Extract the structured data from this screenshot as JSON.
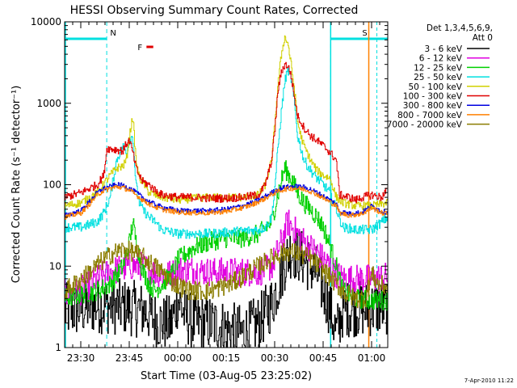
{
  "chart_data": {
    "type": "line",
    "title": "HESSI Observing Summary Count Rates, Corrected",
    "xlabel": "Start Time (03-Aug-05 23:25:02)",
    "ylabel": "Corrected Count Rate (s⁻¹ detector⁻¹)",
    "ylog": true,
    "ylim": [
      1,
      10000
    ],
    "xlim_minutes": [
      -0.03,
      99.97
    ],
    "x_ticks": [
      {
        "m": 4.97,
        "label": "23:30"
      },
      {
        "m": 19.97,
        "label": "23:45"
      },
      {
        "m": 34.97,
        "label": "00:00"
      },
      {
        "m": 49.97,
        "label": "00:15"
      },
      {
        "m": 64.97,
        "label": "00:30"
      },
      {
        "m": 79.97,
        "label": "00:45"
      },
      {
        "m": 94.97,
        "label": "01:00"
      }
    ],
    "y_ticks": [
      {
        "v": 1,
        "label": "1"
      },
      {
        "v": 10,
        "label": "10"
      },
      {
        "v": 100,
        "label": "100"
      },
      {
        "v": 1000,
        "label": "1000"
      },
      {
        "v": 10000,
        "label": "10000"
      }
    ],
    "legend": {
      "placement": "right",
      "header": [
        "Det 1,3,4,5,6,9,",
        "Att 0"
      ]
    },
    "flags": [
      {
        "label": "N",
        "color": "#00e0e0",
        "x_start": -0.03,
        "x_end": 13.0,
        "line_at": 13.0
      },
      {
        "label": "F",
        "color": "#e00000",
        "x_start": 25.3,
        "x_end": 27.4
      },
      {
        "label": "S",
        "color": "#ff8000",
        "x_start": 94.1,
        "x_end": 97.0
      },
      {
        "label": "",
        "color": "#00e0e0",
        "x_start": 82.3,
        "x_end": 99.97,
        "line_at": 82.3
      }
    ],
    "series": [
      {
        "name": "3 - 6 keV",
        "color": "#000000",
        "x": [
          0,
          5,
          10,
          15,
          20,
          25,
          28,
          30,
          33,
          35,
          37,
          40,
          45,
          50,
          55,
          60,
          64,
          66,
          68,
          70,
          72,
          75,
          78,
          80,
          82,
          84,
          86,
          90,
          95,
          100
        ],
        "y": [
          2.8,
          3.0,
          3.3,
          3.2,
          3.1,
          2.8,
          2.2,
          2.0,
          2.0,
          4.0,
          2.5,
          2.0,
          2.0,
          1.7,
          1.5,
          2.0,
          3.5,
          6.0,
          11.0,
          16.0,
          14.0,
          11.0,
          8.0,
          5.0,
          3.0,
          1.5,
          3.0,
          3.0,
          3.0,
          3.2
        ]
      },
      {
        "name": "6 - 12 keV",
        "color": "#e000e0",
        "x": [
          0,
          5,
          10,
          14,
          18,
          20,
          22,
          24,
          26,
          28,
          30,
          33,
          35,
          40,
          45,
          50,
          55,
          60,
          64,
          67,
          69,
          72,
          75,
          78,
          80,
          82,
          84,
          86,
          90,
          95,
          100
        ],
        "y": [
          4.5,
          5.0,
          7.0,
          8.5,
          9.5,
          10.0,
          10.0,
          10.0,
          9.0,
          8.5,
          8.0,
          8.0,
          9.0,
          9.0,
          8.5,
          8.5,
          8.5,
          8.5,
          10.0,
          20.0,
          35.0,
          25.0,
          18.0,
          15.0,
          12.0,
          10.0,
          8.0,
          7.0,
          7.0,
          7.0,
          7.5
        ]
      },
      {
        "name": "12 - 25 keV",
        "color": "#00d000",
        "x": [
          0,
          5,
          10,
          14,
          18,
          20,
          21,
          22,
          24,
          26,
          28,
          30,
          33,
          35,
          40,
          45,
          50,
          55,
          60,
          64,
          66,
          68,
          70,
          72,
          74,
          76,
          78,
          80,
          82,
          84,
          86,
          90,
          95,
          100
        ],
        "y": [
          4.0,
          4.5,
          5.0,
          6.0,
          10.0,
          20.0,
          35.0,
          20.0,
          9.0,
          6.0,
          5.0,
          6.0,
          8.0,
          12.0,
          17.0,
          20.0,
          22.0,
          22.0,
          25.0,
          35.0,
          80.0,
          160.0,
          120.0,
          80.0,
          60.0,
          50.0,
          40.0,
          30.0,
          18.0,
          10.0,
          5.0,
          4.0,
          3.8,
          3.8
        ]
      },
      {
        "name": "25 - 50 keV",
        "color": "#00e0e0",
        "x": [
          0,
          5,
          10,
          12,
          14,
          16,
          18,
          19,
          20,
          21,
          22,
          23,
          24,
          26,
          28,
          30,
          35,
          40,
          45,
          50,
          55,
          60,
          62,
          64,
          65,
          66,
          67,
          68,
          69,
          70,
          71,
          72,
          74,
          76,
          78,
          80,
          82,
          84,
          86,
          90,
          95,
          100
        ],
        "y": [
          30.0,
          30.0,
          35.0,
          45.0,
          70.0,
          200.0,
          300.0,
          250.0,
          350.0,
          400.0,
          100.0,
          60.0,
          50.0,
          40.0,
          35.0,
          28.0,
          25.0,
          25.0,
          25.0,
          26.0,
          27.0,
          28.0,
          30.0,
          40.0,
          100.0,
          300.0,
          800.0,
          1800.0,
          2600.0,
          2000.0,
          1000.0,
          400.0,
          200.0,
          150.0,
          120.0,
          100.0,
          80.0,
          50.0,
          30.0,
          28.0,
          28.0,
          40.0
        ]
      },
      {
        "name": "50 - 100 keV",
        "color": "#d0d000",
        "x": [
          0,
          5,
          10,
          14,
          16,
          18,
          19,
          20,
          21,
          22,
          23,
          24,
          26,
          30,
          35,
          40,
          45,
          50,
          55,
          60,
          62,
          64,
          65,
          66,
          67,
          68,
          69,
          70,
          71,
          72,
          73,
          74,
          76,
          78,
          80,
          82,
          84,
          86,
          90,
          95,
          100
        ],
        "y": [
          55.0,
          60.0,
          80.0,
          130.0,
          160.0,
          170.0,
          200.0,
          400.0,
          700.0,
          200.0,
          120.0,
          110.0,
          80.0,
          70.0,
          65.0,
          68.0,
          70.0,
          70.0,
          70.0,
          75.0,
          100.0,
          200.0,
          600.0,
          1800.0,
          4000.0,
          6500.0,
          5500.0,
          3000.0,
          1500.0,
          600.0,
          400.0,
          300.0,
          200.0,
          150.0,
          130.0,
          120.0,
          70.0,
          60.0,
          55.0,
          55.0,
          60.0
        ]
      },
      {
        "name": "100 - 300 keV",
        "color": "#e00000",
        "x": [
          0,
          5,
          10,
          12,
          13,
          16,
          18,
          19,
          20,
          21,
          22,
          23,
          24,
          26,
          28,
          30,
          35,
          40,
          45,
          50,
          55,
          60,
          62,
          64,
          65,
          66,
          67,
          68,
          69,
          70,
          71,
          72,
          74,
          76,
          78,
          80,
          82,
          84,
          85,
          88,
          90,
          92,
          95,
          98,
          100
        ],
        "y": [
          70.0,
          80.0,
          100.0,
          130.0,
          280.0,
          270.0,
          260.0,
          320.0,
          350.0,
          250.0,
          160.0,
          130.0,
          110.0,
          100.0,
          85.0,
          75.0,
          70.0,
          70.0,
          68.0,
          68.0,
          70.0,
          75.0,
          100.0,
          200.0,
          500.0,
          1500.0,
          2400.0,
          3000.0,
          2900.0,
          2200.0,
          1200.0,
          700.0,
          500.0,
          400.0,
          350.0,
          300.0,
          250.0,
          200.0,
          75.0,
          70.0,
          65.0,
          70.0,
          75.0,
          70.0,
          90.0
        ]
      },
      {
        "name": "300 - 800 keV",
        "color": "#0000e0",
        "x": [
          0,
          5,
          8,
          10,
          12,
          14,
          16,
          18,
          20,
          22,
          24,
          26,
          28,
          30,
          33,
          35,
          40,
          45,
          50,
          55,
          58,
          60,
          62,
          64,
          66,
          68,
          70,
          72,
          74,
          76,
          78,
          80,
          82,
          84,
          85,
          88,
          90,
          92,
          95,
          98,
          100
        ],
        "y": [
          42.0,
          48.0,
          65.0,
          80.0,
          90.0,
          95.0,
          100.0,
          98.0,
          90.0,
          80.0,
          70.0,
          62.0,
          57.0,
          53.0,
          50.0,
          48.0,
          48.0,
          48.0,
          50.0,
          55.0,
          60.0,
          65.0,
          72.0,
          80.0,
          88.0,
          93.0,
          95.0,
          95.0,
          93.0,
          88.0,
          80.0,
          72.0,
          65.0,
          58.0,
          47.0,
          44.0,
          45.0,
          46.0,
          55.0,
          47.0,
          46.0
        ]
      },
      {
        "name": "800 - 7000 keV",
        "color": "#ff8000",
        "x": [
          0,
          5,
          8,
          10,
          12,
          14,
          16,
          18,
          20,
          22,
          24,
          26,
          28,
          30,
          33,
          35,
          40,
          45,
          50,
          55,
          58,
          60,
          62,
          64,
          66,
          68,
          70,
          72,
          74,
          76,
          78,
          80,
          82,
          84,
          85,
          88,
          90,
          92,
          95,
          98,
          100
        ],
        "y": [
          40.0,
          45.0,
          60.0,
          75.0,
          85.0,
          90.0,
          94.0,
          92.0,
          85.0,
          75.0,
          65.0,
          58.0,
          53.0,
          50.0,
          47.0,
          46.0,
          45.0,
          45.0,
          47.0,
          52.0,
          57.0,
          62.0,
          68.0,
          76.0,
          83.0,
          88.0,
          90.0,
          90.0,
          88.0,
          83.0,
          76.0,
          68.0,
          61.0,
          55.0,
          45.0,
          42.0,
          43.0,
          44.0,
          52.0,
          45.0,
          44.0
        ]
      },
      {
        "name": "7000 - 20000 keV",
        "color": "#8b7d00",
        "x": [
          0,
          3,
          6,
          9,
          12,
          15,
          18,
          21,
          24,
          27,
          30,
          33,
          36,
          39,
          42,
          45,
          48,
          51,
          54,
          57,
          60,
          63,
          66,
          69,
          72,
          75,
          78,
          81,
          84,
          87,
          90,
          93,
          95,
          97,
          100
        ],
        "y": [
          5.0,
          6.0,
          7.5,
          9.5,
          12.0,
          14.5,
          16.0,
          15.0,
          13.0,
          10.5,
          8.5,
          6.5,
          5.5,
          5.0,
          5.0,
          5.0,
          5.5,
          6.0,
          7.0,
          8.5,
          10.0,
          12.0,
          14.0,
          15.0,
          14.5,
          13.0,
          10.5,
          8.0,
          6.0,
          4.5,
          4.0,
          4.0,
          8.0,
          6.0,
          5.5
        ]
      }
    ]
  },
  "footer": {
    "timestamp": "7-Apr-2010 11:22"
  }
}
